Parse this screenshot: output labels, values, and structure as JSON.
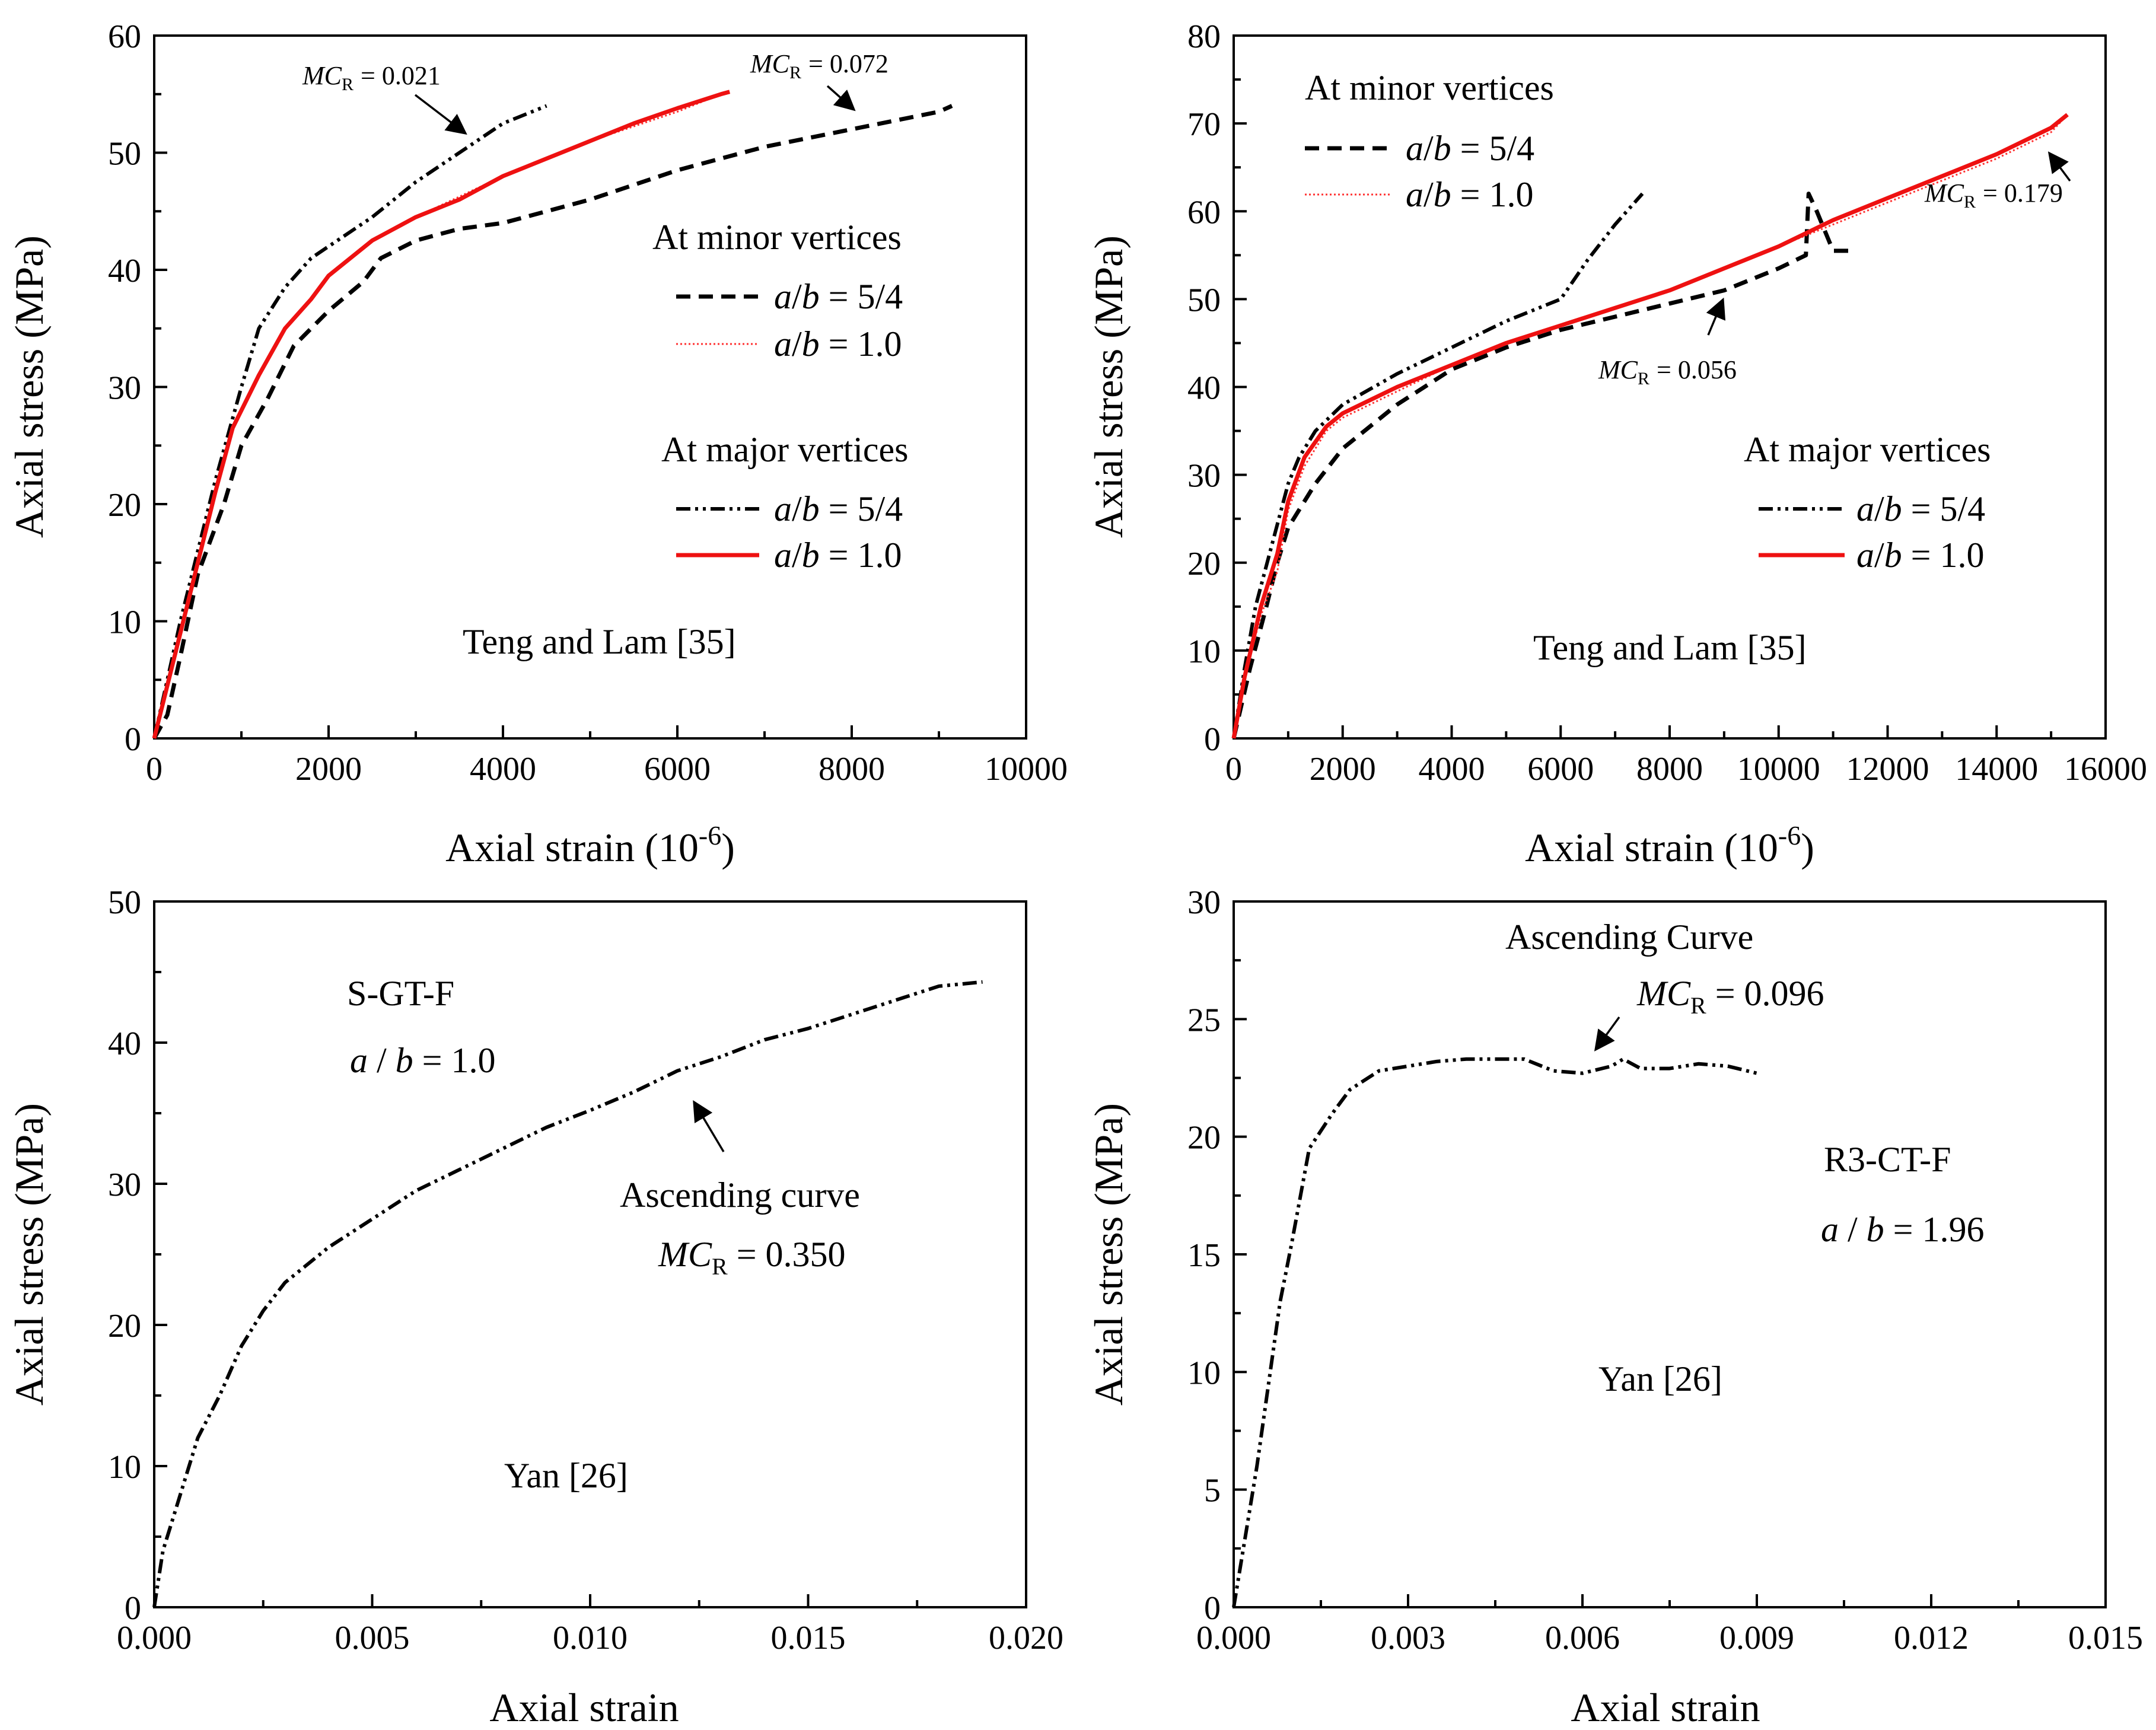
{
  "figure": {
    "panel_count": 4
  },
  "chart_data": [
    {
      "type": "line",
      "xlabel": "Axial strain (10",
      "xlabel_sup": "-6",
      "xlabel_close": ")",
      "ylabel": "Axial stress (MPa)",
      "xlim": [
        0,
        10000
      ],
      "ylim": [
        0,
        60
      ],
      "xticks": [
        0,
        2000,
        4000,
        6000,
        8000,
        10000
      ],
      "xtick_labels": [
        "0",
        "2000",
        "4000",
        "6000",
        "8000",
        "10000"
      ],
      "yticks": [
        0,
        10,
        20,
        30,
        40,
        50,
        60
      ],
      "ytick_labels": [
        "0",
        "10",
        "20",
        "30",
        "40",
        "50",
        "60"
      ],
      "source": "Teng and Lam [35]",
      "legend": {
        "minor_title": "At minor vertices",
        "major_title": "At major vertices",
        "entries": [
          {
            "group": "minor",
            "label": "a/b = 5/4"
          },
          {
            "group": "minor",
            "label": "a/b = 1.0"
          },
          {
            "group": "major",
            "label": "a/b = 5/4"
          },
          {
            "group": "major",
            "label": "a/b = 1.0"
          }
        ]
      },
      "annotations": [
        {
          "prefix": "MC",
          "sub": "R",
          "value": "= 0.021"
        },
        {
          "prefix": "MC",
          "sub": "R",
          "value": "= 0.072"
        }
      ],
      "series": [
        {
          "name": "At minor vertices, a/b = 5/4",
          "style": "dashed",
          "color": "#000000",
          "x": [
            0,
            150,
            300,
            500,
            800,
            1000,
            1300,
            1600,
            2000,
            2400,
            2600,
            3000,
            3500,
            4000,
            5000,
            6000,
            7000,
            8000,
            9000,
            9150
          ],
          "y": [
            0,
            2,
            7,
            14,
            20,
            25,
            29,
            33.5,
            36.5,
            39,
            41,
            42.5,
            43.5,
            44,
            46,
            48.5,
            50.5,
            52,
            53.5,
            54
          ]
        },
        {
          "name": "At minor vertices, a/b = 1.0",
          "style": "dotted",
          "color": "#ff3030",
          "x": [
            0,
            100,
            300,
            500,
            700,
            900,
            1200,
            1500,
            1800,
            2000,
            2500,
            3000,
            4000,
            5000,
            6000,
            6500
          ],
          "y": [
            0,
            3,
            9,
            15,
            21,
            26.5,
            31,
            35,
            37.5,
            39.5,
            42.5,
            44.5,
            48,
            51,
            53.5,
            55
          ]
        },
        {
          "name": "At major vertices, a/b = 5/4",
          "style": "dashdotdot",
          "color": "#000000",
          "x": [
            0,
            150,
            300,
            500,
            700,
            1000,
            1200,
            1500,
            1800,
            2000,
            2500,
            3000,
            3500,
            4000,
            4500
          ],
          "y": [
            0,
            5,
            10,
            16,
            22,
            30,
            35,
            38.5,
            41,
            42,
            44.5,
            47.5,
            50,
            52.5,
            54
          ]
        },
        {
          "name": "At major vertices, a/b = 1.0",
          "style": "solid",
          "color": "#ee1111",
          "x": [
            0,
            100,
            300,
            500,
            700,
            900,
            1200,
            1500,
            1800,
            2000,
            2500,
            3000,
            3500,
            4000,
            4500,
            5000,
            5500,
            6000,
            6500,
            6600
          ],
          "y": [
            0,
            3,
            9,
            15,
            21,
            26.5,
            31,
            35,
            37.5,
            39.5,
            42.5,
            44.5,
            46,
            48,
            49.5,
            51,
            52.5,
            53.8,
            55,
            55.2
          ]
        }
      ]
    },
    {
      "type": "line",
      "xlabel": "Axial strain (10",
      "xlabel_sup": "-6",
      "xlabel_close": ")",
      "ylabel": "Axial stress (MPa)",
      "xlim": [
        0,
        16000
      ],
      "ylim": [
        0,
        80
      ],
      "xticks": [
        0,
        2000,
        4000,
        6000,
        8000,
        10000,
        12000,
        14000,
        16000
      ],
      "xtick_labels": [
        "0",
        "2000",
        "4000",
        "6000",
        "8000",
        "10000",
        "12000",
        "14000",
        "16000"
      ],
      "yticks": [
        0,
        10,
        20,
        30,
        40,
        50,
        60,
        70,
        80
      ],
      "ytick_labels": [
        "0",
        "10",
        "20",
        "30",
        "40",
        "50",
        "60",
        "70",
        "80"
      ],
      "source": "Teng and Lam [35]",
      "legend": {
        "minor_title": "At minor vertices",
        "major_title": "At major vertices",
        "entries": [
          {
            "group": "minor",
            "label": "a/b = 5/4"
          },
          {
            "group": "minor",
            "label": "a/b = 1.0"
          },
          {
            "group": "major",
            "label": "a/b = 5/4"
          },
          {
            "group": "major",
            "label": "a/b = 1.0"
          }
        ]
      },
      "annotations": [
        {
          "prefix": "MC",
          "sub": "R",
          "value": "= 0.056"
        },
        {
          "prefix": "MC",
          "sub": "R",
          "value": "= 0.179"
        }
      ],
      "series": [
        {
          "name": "At minor vertices, a/b = 5/4",
          "style": "dashed",
          "color": "#000000",
          "x": [
            0,
            300,
            600,
            800,
            1000,
            1500,
            2000,
            3000,
            4000,
            5000,
            6000,
            7000,
            8000,
            9000,
            10000,
            10500,
            10550,
            10700,
            10900,
            11000,
            11300
          ],
          "y": [
            0,
            8,
            15,
            20,
            24,
            29,
            33,
            38,
            42,
            44.5,
            46.5,
            48,
            49.5,
            51,
            53.5,
            55,
            62,
            60,
            57,
            55.5,
            55.5
          ]
        },
        {
          "name": "At minor vertices, a/b = 1.0",
          "style": "dotted",
          "color": "#ff3030",
          "x": [
            0,
            200,
            500,
            800,
            1000,
            1300,
            1700,
            2000,
            2500,
            3000,
            4000,
            5000,
            6000,
            7000,
            8000,
            9000,
            10000,
            11000,
            12000,
            13000,
            14000,
            15000,
            15300
          ],
          "y": [
            0,
            7,
            14,
            19,
            26,
            31,
            35,
            36.5,
            38,
            39.5,
            42.5,
            45,
            47,
            49,
            51,
            53.5,
            56,
            58.5,
            61,
            63.5,
            66,
            69,
            71
          ]
        },
        {
          "name": "At major vertices, a/b = 5/4",
          "style": "dashdotdot",
          "color": "#000000",
          "x": [
            0,
            200,
            400,
            700,
            1000,
            1200,
            1500,
            2000,
            3000,
            4000,
            5000,
            6000,
            6500,
            7000,
            7500
          ],
          "y": [
            0,
            8,
            15,
            22,
            29,
            32,
            35,
            38,
            41.5,
            44.5,
            47.5,
            50,
            54.5,
            58.5,
            62
          ]
        },
        {
          "name": "At major vertices, a/b = 1.0",
          "style": "solid",
          "color": "#ee1111",
          "x": [
            0,
            200,
            500,
            800,
            1000,
            1300,
            1700,
            2000,
            2500,
            3000,
            4000,
            5000,
            6000,
            7000,
            8000,
            9000,
            10000,
            10500,
            11000,
            12000,
            13000,
            14000,
            15000,
            15300
          ],
          "y": [
            0,
            7,
            15,
            21,
            27,
            32,
            35.5,
            37,
            38.5,
            40,
            42.5,
            45,
            47,
            49,
            51,
            53.5,
            56,
            57.5,
            59,
            61.5,
            64,
            66.5,
            69.5,
            71
          ]
        }
      ]
    },
    {
      "type": "line",
      "xlabel": "Axial strain",
      "ylabel": "Axial stress (MPa)",
      "xlim": [
        0,
        0.02
      ],
      "ylim": [
        0,
        50
      ],
      "xticks": [
        0,
        0.005,
        0.01,
        0.015,
        0.02
      ],
      "xtick_labels": [
        "0.000",
        "0.005",
        "0.010",
        "0.015",
        "0.020"
      ],
      "yticks": [
        0,
        10,
        20,
        30,
        40,
        50
      ],
      "ytick_labels": [
        "0",
        "10",
        "20",
        "30",
        "40",
        "50"
      ],
      "source": "Yan [26]",
      "specimen": "S-GT-F",
      "ratio": {
        "a": "a",
        "slash": " / ",
        "b": "b",
        "value": " = 1.0"
      },
      "annotations": [
        {
          "text": "Ascending curve"
        },
        {
          "prefix": "MC",
          "sub": "R",
          "value": " = 0.350"
        }
      ],
      "series": [
        {
          "name": "Ascending curve",
          "style": "dashdotdot",
          "color": "#000000",
          "x": [
            0,
            0.0002,
            0.0005,
            0.0008,
            0.001,
            0.0015,
            0.002,
            0.0025,
            0.003,
            0.004,
            0.005,
            0.006,
            0.007,
            0.008,
            0.009,
            0.01,
            0.011,
            0.012,
            0.013,
            0.014,
            0.015,
            0.016,
            0.017,
            0.018,
            0.019
          ],
          "y": [
            0,
            4,
            7,
            10,
            12,
            15,
            18.5,
            21,
            23,
            25.5,
            27.5,
            29.5,
            31,
            32.5,
            34,
            35.2,
            36.5,
            38,
            39,
            40.2,
            41,
            42,
            43,
            44,
            44.3
          ]
        }
      ]
    },
    {
      "type": "line",
      "xlabel": "Axial strain",
      "ylabel": "Axial stress (MPa)",
      "xlim": [
        0,
        0.015
      ],
      "ylim": [
        0,
        30
      ],
      "xticks": [
        0,
        0.003,
        0.006,
        0.009,
        0.012,
        0.015
      ],
      "xtick_labels": [
        "0.000",
        "0.003",
        "0.006",
        "0.009",
        "0.012",
        "0.015"
      ],
      "yticks": [
        0,
        5,
        10,
        15,
        20,
        25,
        30
      ],
      "ytick_labels": [
        "0",
        "5",
        "10",
        "15",
        "20",
        "25",
        "30"
      ],
      "source": "Yan [26]",
      "specimen": "R3-CT-F",
      "ratio": {
        "a": "a",
        "slash": " / ",
        "b": "b",
        "value": " = 1.96"
      },
      "annotations": [
        {
          "text": "Ascending Curve"
        },
        {
          "prefix": "MC",
          "sub": "R",
          "value": " = 0.096"
        }
      ],
      "series": [
        {
          "name": "Ascending Curve",
          "style": "dashdotdot",
          "color": "#000000",
          "x": [
            0,
            0.0002,
            0.0004,
            0.0006,
            0.0008,
            0.001,
            0.0013,
            0.0017,
            0.002,
            0.0025,
            0.003,
            0.0035,
            0.004,
            0.0045,
            0.005,
            0.0055,
            0.006,
            0.0065,
            0.0067,
            0.007,
            0.0075,
            0.008,
            0.0085,
            0.009
          ],
          "y": [
            0,
            3,
            6,
            9.5,
            13,
            15.5,
            19.5,
            21,
            22,
            22.8,
            23,
            23.2,
            23.3,
            23.3,
            23.3,
            22.8,
            22.7,
            23,
            23.3,
            22.9,
            22.9,
            23.1,
            23,
            22.7
          ]
        }
      ]
    }
  ]
}
